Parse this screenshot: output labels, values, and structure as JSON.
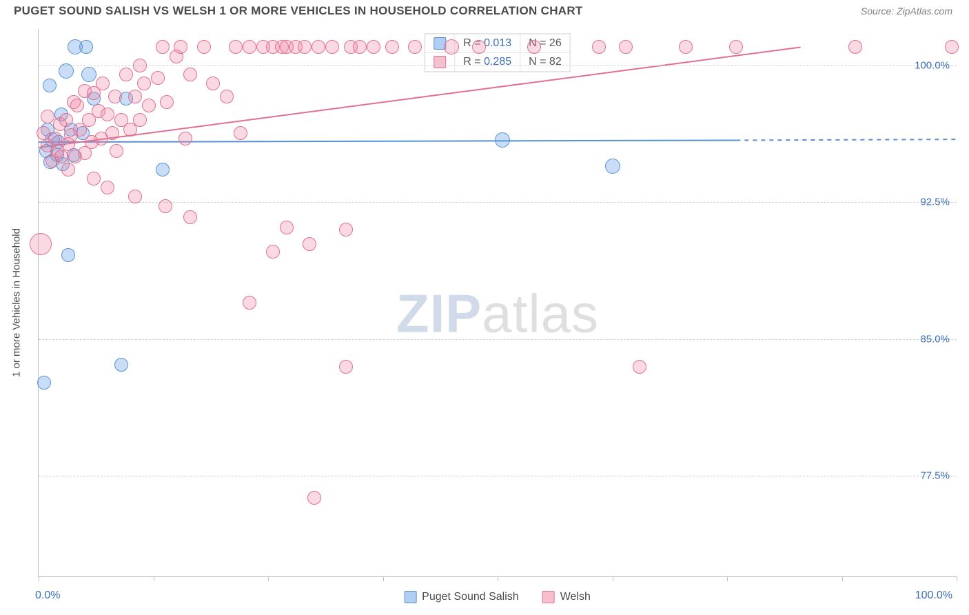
{
  "header": {
    "title": "PUGET SOUND SALISH VS WELSH 1 OR MORE VEHICLES IN HOUSEHOLD CORRELATION CHART",
    "source": "Source: ZipAtlas.com"
  },
  "chart": {
    "type": "scatter",
    "ylabel": "1 or more Vehicles in Household",
    "xlim": [
      0,
      100
    ],
    "ylim": [
      72,
      102
    ],
    "xtick_positions": [
      0,
      12.5,
      25,
      37.5,
      50,
      62.5,
      75,
      87.5,
      100
    ],
    "xaxis_labels": {
      "min": "0.0%",
      "max": "100.0%"
    },
    "ytick_positions": [
      77.5,
      85.0,
      92.5,
      100.0
    ],
    "ytick_labels": [
      "77.5%",
      "85.0%",
      "92.5%",
      "100.0%"
    ],
    "grid_color": "#d0d0d0",
    "background_color": "#ffffff",
    "axis_color": "#c0c0c0",
    "label_color": "#3b6fb6",
    "watermark": {
      "bold": "ZIP",
      "rest": "atlas"
    },
    "series": [
      {
        "name": "Puget Sound Salish",
        "color_fill": "rgba(100,160,230,0.35)",
        "color_stroke": "#5a8fd6",
        "css": "blue",
        "r_value": "0.013",
        "n_value": "26",
        "trend": {
          "x1": 0,
          "y1": 95.8,
          "x2": 76,
          "y2": 95.9,
          "dash_x2": 100,
          "dash_y2": 95.95,
          "width": 2
        },
        "points": [
          {
            "x": 4.0,
            "y": 101.0,
            "r": 11
          },
          {
            "x": 5.2,
            "y": 101.0,
            "r": 10
          },
          {
            "x": 3.0,
            "y": 99.7,
            "r": 11
          },
          {
            "x": 5.5,
            "y": 99.5,
            "r": 11
          },
          {
            "x": 1.2,
            "y": 98.9,
            "r": 10
          },
          {
            "x": 6.0,
            "y": 98.2,
            "r": 10
          },
          {
            "x": 9.5,
            "y": 98.2,
            "r": 10
          },
          {
            "x": 2.5,
            "y": 97.3,
            "r": 10
          },
          {
            "x": 1.0,
            "y": 96.5,
            "r": 10
          },
          {
            "x": 3.5,
            "y": 96.5,
            "r": 10
          },
          {
            "x": 4.8,
            "y": 96.3,
            "r": 10
          },
          {
            "x": 1.5,
            "y": 95.9,
            "r": 11
          },
          {
            "x": 2.2,
            "y": 95.8,
            "r": 10
          },
          {
            "x": 0.8,
            "y": 95.3,
            "r": 10
          },
          {
            "x": 2.0,
            "y": 95.1,
            "r": 10
          },
          {
            "x": 3.8,
            "y": 95.1,
            "r": 10
          },
          {
            "x": 1.3,
            "y": 94.7,
            "r": 10
          },
          {
            "x": 2.6,
            "y": 94.6,
            "r": 10
          },
          {
            "x": 13.5,
            "y": 94.3,
            "r": 10
          },
          {
            "x": 50.5,
            "y": 95.9,
            "r": 11
          },
          {
            "x": 62.5,
            "y": 94.5,
            "r": 11
          },
          {
            "x": 3.2,
            "y": 89.6,
            "r": 10
          },
          {
            "x": 0.6,
            "y": 82.6,
            "r": 10
          },
          {
            "x": 9.0,
            "y": 83.6,
            "r": 10
          }
        ]
      },
      {
        "name": "Welsh",
        "color_fill": "rgba(240,130,160,0.30)",
        "color_stroke": "#e07090",
        "css": "pink",
        "r_value": "0.285",
        "n_value": "82",
        "trend": {
          "x1": 0,
          "y1": 95.5,
          "x2": 83,
          "y2": 101.0,
          "width": 2
        },
        "points": [
          {
            "x": 0.5,
            "y": 96.3,
            "r": 10
          },
          {
            "x": 1.0,
            "y": 95.6,
            "r": 10
          },
          {
            "x": 1.0,
            "y": 97.2,
            "r": 10
          },
          {
            "x": 1.5,
            "y": 94.8,
            "r": 10
          },
          {
            "x": 1.8,
            "y": 96.0,
            "r": 10
          },
          {
            "x": 2.0,
            "y": 95.3,
            "r": 10
          },
          {
            "x": 2.3,
            "y": 96.8,
            "r": 10
          },
          {
            "x": 2.5,
            "y": 95.0,
            "r": 10
          },
          {
            "x": 3.0,
            "y": 97.0,
            "r": 10
          },
          {
            "x": 3.2,
            "y": 95.7,
            "r": 10
          },
          {
            "x": 3.2,
            "y": 94.3,
            "r": 10
          },
          {
            "x": 3.5,
            "y": 96.2,
            "r": 10
          },
          {
            "x": 3.8,
            "y": 98.0,
            "r": 10
          },
          {
            "x": 4.0,
            "y": 95.0,
            "r": 10
          },
          {
            "x": 4.2,
            "y": 97.8,
            "r": 10
          },
          {
            "x": 4.5,
            "y": 96.5,
            "r": 10
          },
          {
            "x": 5.0,
            "y": 98.6,
            "r": 10
          },
          {
            "x": 5.0,
            "y": 95.2,
            "r": 10
          },
          {
            "x": 5.5,
            "y": 97.0,
            "r": 10
          },
          {
            "x": 5.8,
            "y": 95.8,
            "r": 10
          },
          {
            "x": 6.0,
            "y": 98.5,
            "r": 10
          },
          {
            "x": 6.0,
            "y": 93.8,
            "r": 10
          },
          {
            "x": 6.5,
            "y": 97.5,
            "r": 10
          },
          {
            "x": 6.8,
            "y": 96.0,
            "r": 10
          },
          {
            "x": 7.0,
            "y": 99.0,
            "r": 10
          },
          {
            "x": 7.5,
            "y": 97.3,
            "r": 10
          },
          {
            "x": 7.5,
            "y": 93.3,
            "r": 10
          },
          {
            "x": 8.0,
            "y": 96.3,
            "r": 10
          },
          {
            "x": 8.3,
            "y": 98.3,
            "r": 10
          },
          {
            "x": 8.5,
            "y": 95.3,
            "r": 10
          },
          {
            "x": 9.0,
            "y": 97.0,
            "r": 10
          },
          {
            "x": 9.5,
            "y": 99.5,
            "r": 10
          },
          {
            "x": 10.0,
            "y": 96.5,
            "r": 10
          },
          {
            "x": 10.5,
            "y": 98.3,
            "r": 10
          },
          {
            "x": 10.5,
            "y": 92.8,
            "r": 10
          },
          {
            "x": 11.0,
            "y": 97.0,
            "r": 10
          },
          {
            "x": 11.0,
            "y": 100.0,
            "r": 10
          },
          {
            "x": 11.5,
            "y": 99.0,
            "r": 10
          },
          {
            "x": 12.0,
            "y": 97.8,
            "r": 10
          },
          {
            "x": 13.0,
            "y": 99.3,
            "r": 10
          },
          {
            "x": 13.5,
            "y": 101.0,
            "r": 10
          },
          {
            "x": 13.8,
            "y": 92.3,
            "r": 10
          },
          {
            "x": 14.0,
            "y": 98.0,
            "r": 10
          },
          {
            "x": 15.0,
            "y": 100.5,
            "r": 10
          },
          {
            "x": 15.5,
            "y": 101.0,
            "r": 10
          },
          {
            "x": 16.0,
            "y": 96.0,
            "r": 10
          },
          {
            "x": 16.5,
            "y": 91.7,
            "r": 10
          },
          {
            "x": 16.5,
            "y": 99.5,
            "r": 10
          },
          {
            "x": 18.0,
            "y": 101.0,
            "r": 10
          },
          {
            "x": 19.0,
            "y": 99.0,
            "r": 10
          },
          {
            "x": 20.5,
            "y": 98.3,
            "r": 10
          },
          {
            "x": 21.5,
            "y": 101.0,
            "r": 10
          },
          {
            "x": 22.0,
            "y": 96.3,
            "r": 10
          },
          {
            "x": 23.0,
            "y": 87.0,
            "r": 10
          },
          {
            "x": 23.0,
            "y": 101.0,
            "r": 10
          },
          {
            "x": 24.5,
            "y": 101.0,
            "r": 10
          },
          {
            "x": 25.5,
            "y": 89.8,
            "r": 10
          },
          {
            "x": 25.5,
            "y": 101.0,
            "r": 10
          },
          {
            "x": 26.5,
            "y": 101.0,
            "r": 10
          },
          {
            "x": 27.0,
            "y": 101.0,
            "r": 10
          },
          {
            "x": 27.0,
            "y": 91.1,
            "r": 10
          },
          {
            "x": 28.0,
            "y": 101.0,
            "r": 10
          },
          {
            "x": 29.0,
            "y": 101.0,
            "r": 10
          },
          {
            "x": 29.5,
            "y": 90.2,
            "r": 10
          },
          {
            "x": 30.0,
            "y": 76.3,
            "r": 10
          },
          {
            "x": 30.5,
            "y": 101.0,
            "r": 10
          },
          {
            "x": 32.0,
            "y": 101.0,
            "r": 10
          },
          {
            "x": 33.5,
            "y": 83.5,
            "r": 10
          },
          {
            "x": 33.5,
            "y": 91.0,
            "r": 10
          },
          {
            "x": 34.0,
            "y": 101.0,
            "r": 10
          },
          {
            "x": 35.0,
            "y": 101.0,
            "r": 10
          },
          {
            "x": 36.5,
            "y": 101.0,
            "r": 10
          },
          {
            "x": 38.5,
            "y": 101.0,
            "r": 10
          },
          {
            "x": 41.0,
            "y": 101.0,
            "r": 10
          },
          {
            "x": 45.0,
            "y": 101.0,
            "r": 11
          },
          {
            "x": 48.0,
            "y": 101.0,
            "r": 10
          },
          {
            "x": 54.0,
            "y": 101.0,
            "r": 10
          },
          {
            "x": 61.0,
            "y": 101.0,
            "r": 10
          },
          {
            "x": 64.0,
            "y": 101.0,
            "r": 10
          },
          {
            "x": 65.5,
            "y": 83.5,
            "r": 10
          },
          {
            "x": 70.5,
            "y": 101.0,
            "r": 10
          },
          {
            "x": 76.0,
            "y": 101.0,
            "r": 10
          },
          {
            "x": 89.0,
            "y": 101.0,
            "r": 10
          },
          {
            "x": 99.5,
            "y": 101.0,
            "r": 10
          },
          {
            "x": 0.2,
            "y": 90.2,
            "r": 16
          }
        ]
      }
    ]
  }
}
